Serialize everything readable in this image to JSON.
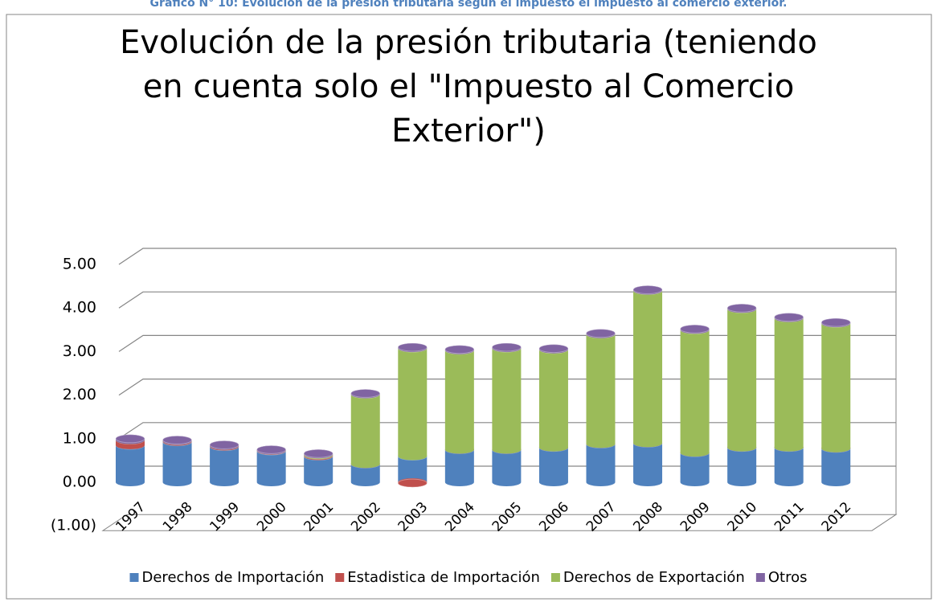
{
  "caption": "Gráfico N° 10: Evolución de la presión tributaria según el impuesto el impuesto al comercio exterior.",
  "chart_data": {
    "type": "bar",
    "stacked": true,
    "title": "Evolución de la presión tributaria (teniendo en cuenta solo el \"Impuesto al Comercio Exterior\")",
    "categories": [
      "1997",
      "1998",
      "1999",
      "2000",
      "2001",
      "2002",
      "2003",
      "2004",
      "2005",
      "2006",
      "2007",
      "2008",
      "2009",
      "2010",
      "2011",
      "2012"
    ],
    "series": [
      {
        "name": "Derechos de Importación",
        "color": "#4f81bd",
        "values": [
          0.85,
          0.93,
          0.82,
          0.72,
          0.6,
          0.42,
          0.6,
          0.75,
          0.75,
          0.8,
          0.88,
          0.9,
          0.68,
          0.8,
          0.8,
          0.78
        ]
      },
      {
        "name": "Estadistica de Importación",
        "color": "#c0504d",
        "values": [
          0.12,
          0.02,
          0.02,
          0.01,
          0.02,
          0,
          -0.02,
          0,
          0,
          0,
          0,
          0,
          0,
          0,
          0,
          0
        ]
      },
      {
        "name": "Derechos de Exportación",
        "color": "#9bbb59",
        "values": [
          0,
          0,
          0,
          0,
          0.02,
          1.6,
          2.48,
          2.28,
          2.33,
          2.25,
          2.52,
          3.5,
          2.82,
          3.18,
          2.97,
          2.87
        ]
      },
      {
        "name": "Otros",
        "color": "#8064a2",
        "values": [
          0.03,
          0.02,
          0.02,
          0.02,
          0.02,
          0.02,
          0.02,
          0.02,
          0.02,
          0.02,
          0.02,
          0.02,
          0.02,
          0.02,
          0.02,
          0.02
        ]
      }
    ],
    "ylim": [
      -1,
      5
    ],
    "yticks": [
      {
        "value": -1,
        "label": "(1.00)"
      },
      {
        "value": 0,
        "label": "0.00"
      },
      {
        "value": 1,
        "label": "1.00"
      },
      {
        "value": 2,
        "label": "2.00"
      },
      {
        "value": 3,
        "label": "3.00"
      },
      {
        "value": 4,
        "label": "4.00"
      },
      {
        "value": 5,
        "label": "5.00"
      }
    ],
    "grid": true,
    "legend": "bottom"
  }
}
